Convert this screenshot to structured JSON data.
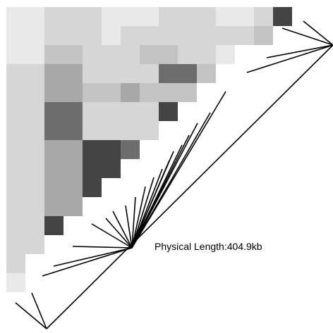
{
  "plot": {
    "label_prefix": "Physical Length:",
    "label_value": "404.9kb",
    "colors": {
      "very_light": "#e9e9e9",
      "light": "#d6d6d6",
      "light_mid": "#c3c3c3",
      "mid": "#a8a8a8",
      "dark": "#6d6d6d",
      "darkest": "#444444",
      "line": "#000000"
    }
  }
}
